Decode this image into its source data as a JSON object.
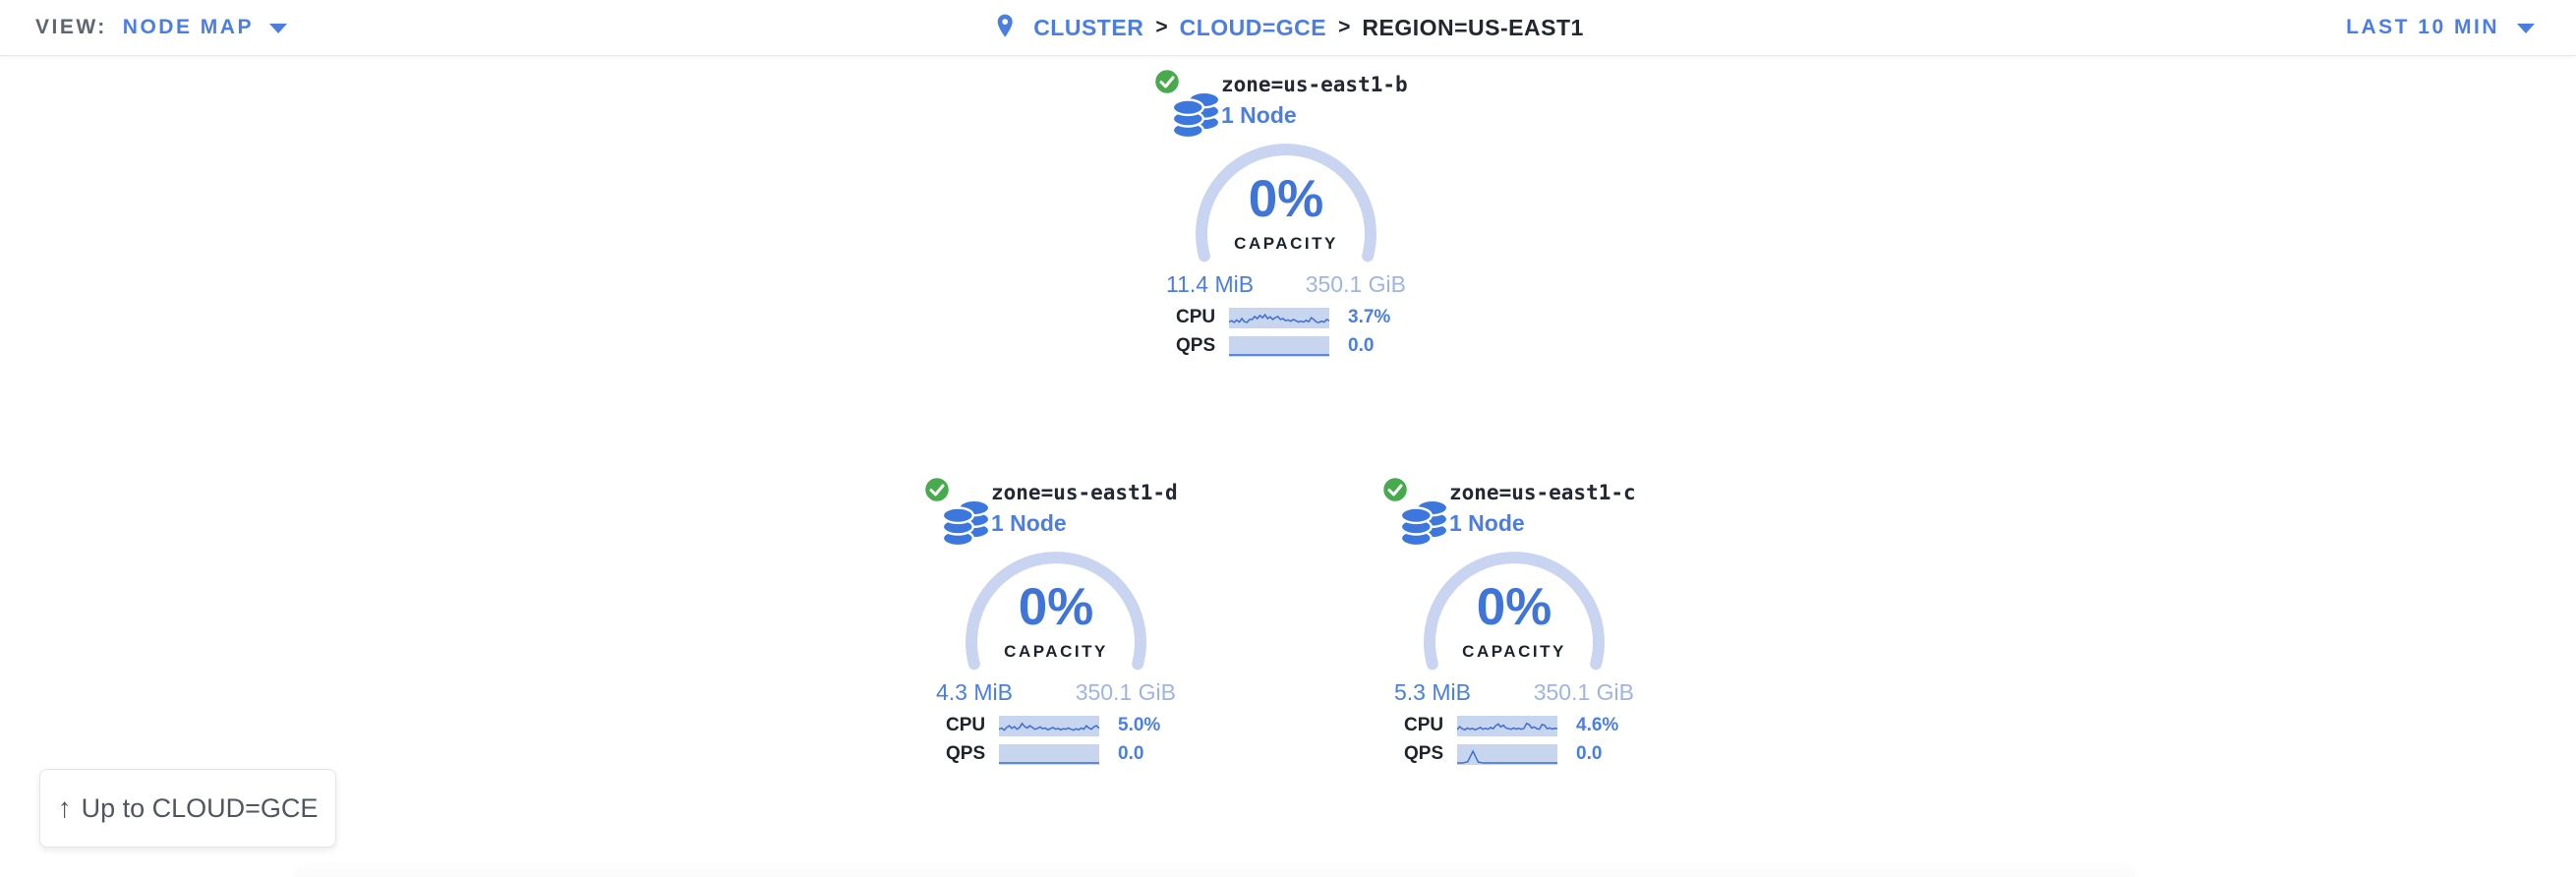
{
  "topbar": {
    "view_label": "VIEW:",
    "view_value": "NODE MAP",
    "time_range": "LAST 10 MIN",
    "separator": ">",
    "breadcrumb": [
      {
        "label": "CLUSTER"
      },
      {
        "label": "CLOUD=GCE"
      },
      {
        "label": "REGION=US-EAST1"
      }
    ]
  },
  "zones": [
    {
      "title": "zone=us-east1-b",
      "subtitle": "1 Node",
      "status": "healthy",
      "capacity_pct": "0%",
      "capacity_label": "CAPACITY",
      "used": "11.4 MiB",
      "total": "350.1 GiB",
      "cpu_label": "CPU",
      "cpu_value": "3.7%",
      "qps_label": "QPS",
      "qps_value": "0.0",
      "cpu_spark": [
        0.3,
        0.38,
        0.28,
        0.42,
        0.3,
        0.5,
        0.32,
        0.28,
        0.45,
        0.45,
        0.62,
        0.5,
        0.68,
        0.55,
        0.72,
        0.5,
        0.6,
        0.45,
        0.55,
        0.62,
        0.45,
        0.5,
        0.38,
        0.42,
        0.35,
        0.45,
        0.38,
        0.3,
        0.35,
        0.3,
        0.4,
        0.32,
        0.55,
        0.45,
        0.3,
        0.28,
        0.35,
        0.3,
        0.45,
        0.38
      ],
      "qps_spark": [
        0.05,
        0.05,
        0.05,
        0.05,
        0.05,
        0.05,
        0.05,
        0.05,
        0.05,
        0.05,
        0.05,
        0.05,
        0.05,
        0.05,
        0.05,
        0.05,
        0.05,
        0.05,
        0.05,
        0.05
      ]
    },
    {
      "title": "zone=us-east1-d",
      "subtitle": "1 Node",
      "status": "healthy",
      "capacity_pct": "0%",
      "capacity_label": "CAPACITY",
      "used": "4.3 MiB",
      "total": "350.1 GiB",
      "cpu_label": "CPU",
      "cpu_value": "5.0%",
      "qps_label": "QPS",
      "qps_value": "0.0",
      "cpu_spark": [
        0.35,
        0.42,
        0.3,
        0.45,
        0.55,
        0.4,
        0.5,
        0.35,
        0.45,
        0.68,
        0.5,
        0.42,
        0.55,
        0.45,
        0.35,
        0.4,
        0.48,
        0.38,
        0.42,
        0.32,
        0.38,
        0.45,
        0.35,
        0.4,
        0.32,
        0.38,
        0.35,
        0.42,
        0.35,
        0.3,
        0.38,
        0.32,
        0.42,
        0.35,
        0.55,
        0.42,
        0.35,
        0.5,
        0.55,
        0.4
      ],
      "qps_spark": [
        0.05,
        0.05,
        0.05,
        0.05,
        0.05,
        0.05,
        0.05,
        0.05,
        0.05,
        0.05,
        0.05,
        0.05,
        0.05,
        0.05,
        0.05,
        0.05,
        0.05,
        0.05,
        0.05,
        0.05
      ]
    },
    {
      "title": "zone=us-east1-c",
      "subtitle": "1 Node",
      "status": "healthy",
      "capacity_pct": "0%",
      "capacity_label": "CAPACITY",
      "used": "5.3 MiB",
      "total": "350.1 GiB",
      "cpu_label": "CPU",
      "cpu_value": "4.6%",
      "qps_label": "QPS",
      "qps_value": "0.0",
      "cpu_spark": [
        0.32,
        0.5,
        0.38,
        0.32,
        0.42,
        0.35,
        0.4,
        0.32,
        0.38,
        0.45,
        0.35,
        0.4,
        0.35,
        0.45,
        0.38,
        0.55,
        0.65,
        0.48,
        0.58,
        0.42,
        0.38,
        0.35,
        0.42,
        0.36,
        0.4,
        0.35,
        0.4,
        0.68,
        0.62,
        0.42,
        0.48,
        0.38,
        0.35,
        0.62,
        0.58,
        0.38,
        0.42,
        0.36,
        0.4,
        0.38
      ],
      "qps_spark": [
        0.05,
        0.05,
        0.12,
        0.72,
        0.1,
        0.05,
        0.05,
        0.05,
        0.05,
        0.05,
        0.05,
        0.05,
        0.05,
        0.05,
        0.05,
        0.05,
        0.05,
        0.05,
        0.05,
        0.05
      ]
    }
  ],
  "up_button": {
    "arrow": "↑",
    "label": "Up to CLOUD=GCE"
  },
  "colors": {
    "link_blue": "#4a7ee2",
    "deep_blue": "#3f74d8",
    "arc_light_blue": "#c9d5f0",
    "spark_bg": "#c8d5ef",
    "spark_line": "#3b6fd4",
    "muted_blue": "#9fb4e6",
    "dark_text": "#232933",
    "gray_text": "#5d6670",
    "green_ok": "#47ab4d"
  }
}
